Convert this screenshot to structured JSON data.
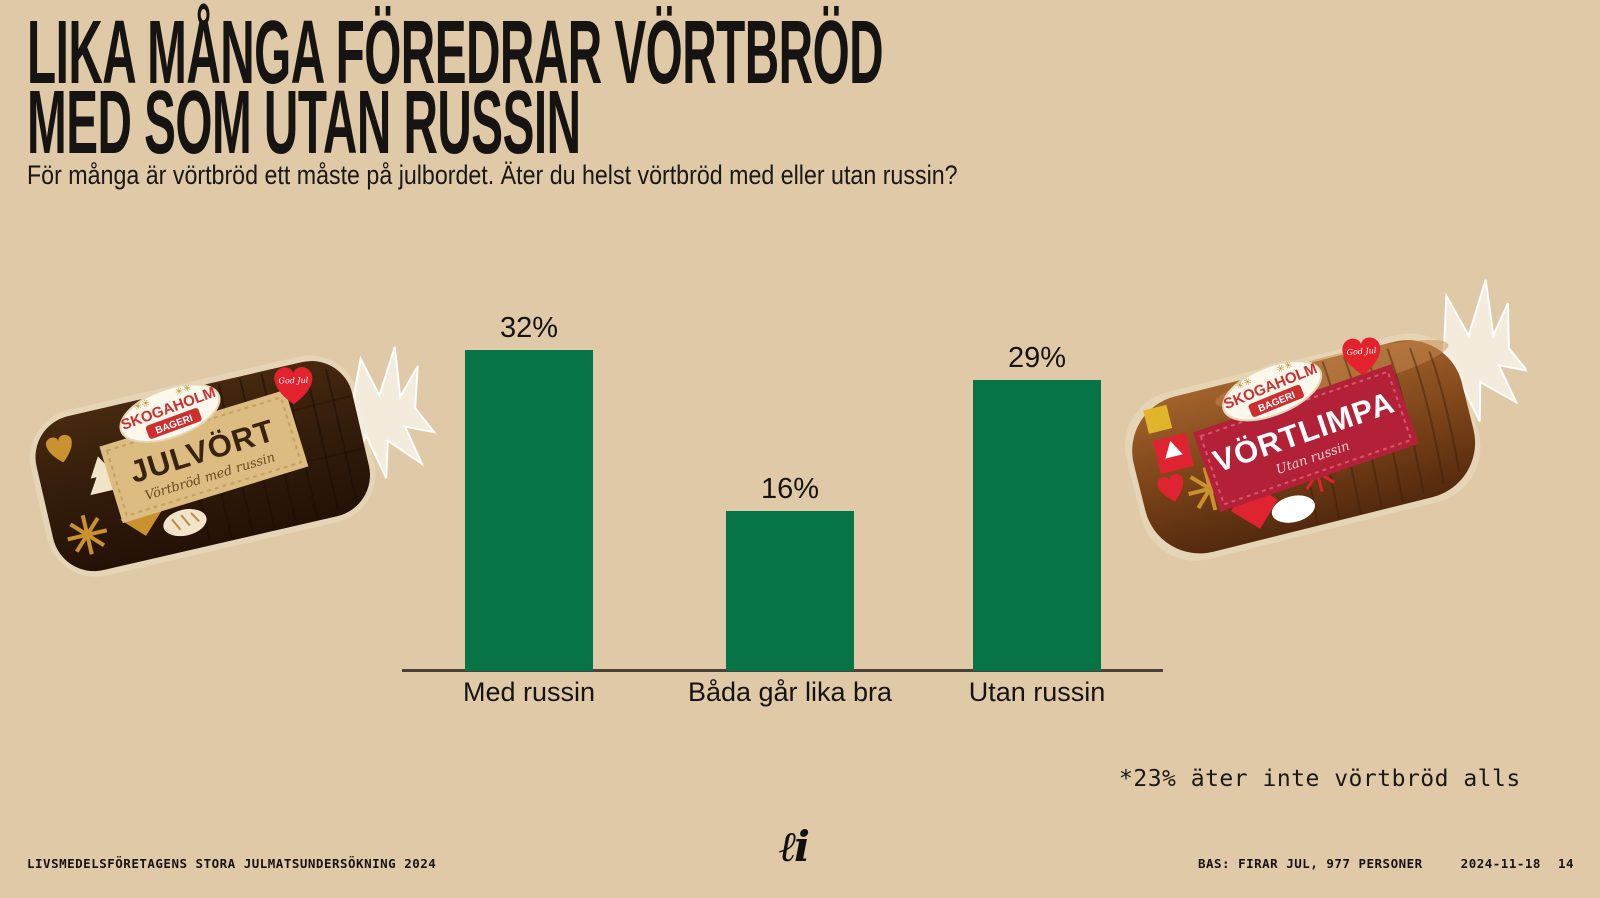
{
  "page": {
    "background_color": "#e0c9a6",
    "title_line1": "LIKA MÅNGA FÖREDRAR VÖRTBRÖD",
    "title_line2": "MED SOM UTAN RUSSIN",
    "subtitle": "För många är vörtbröd ett måste på julbordet. Äter du helst vörtbröd med eller utan russin?",
    "footnote": "*23% äter inte vörtbröd alls"
  },
  "chart_data": {
    "type": "bar",
    "categories": [
      "Med russin",
      "Båda går lika bra",
      "Utan russin"
    ],
    "values": [
      32,
      16,
      29
    ],
    "value_labels": [
      "32%",
      "16%",
      "29%"
    ],
    "bar_color": "#077448",
    "axis_color": "#4a413a",
    "ylim": [
      0,
      35
    ],
    "grid": false,
    "legend": false,
    "annotation": "*23% äter inte vörtbröd alls"
  },
  "products": [
    {
      "brand": "SKOGAHOLM",
      "brand_sub": "BAGERI",
      "name": "JULVÖRT",
      "tagline": "Vörtbröd med russin",
      "sticker": "God Jul"
    },
    {
      "brand": "SKOGAHOLM",
      "brand_sub": "BAGERI",
      "name": "VÖRTLIMPA",
      "tagline": "Utan russin",
      "sticker": "God Jul"
    }
  ],
  "footer": {
    "left": "LIVSMEDELSFÖRETAGENS STORA JULMATSUNDERSÖKNING 2024",
    "logo": "ℓi",
    "right_base": "BAS: FIRAR JUL, 977 PERSONER",
    "right_date": "2024-11-18",
    "right_page": "14"
  }
}
